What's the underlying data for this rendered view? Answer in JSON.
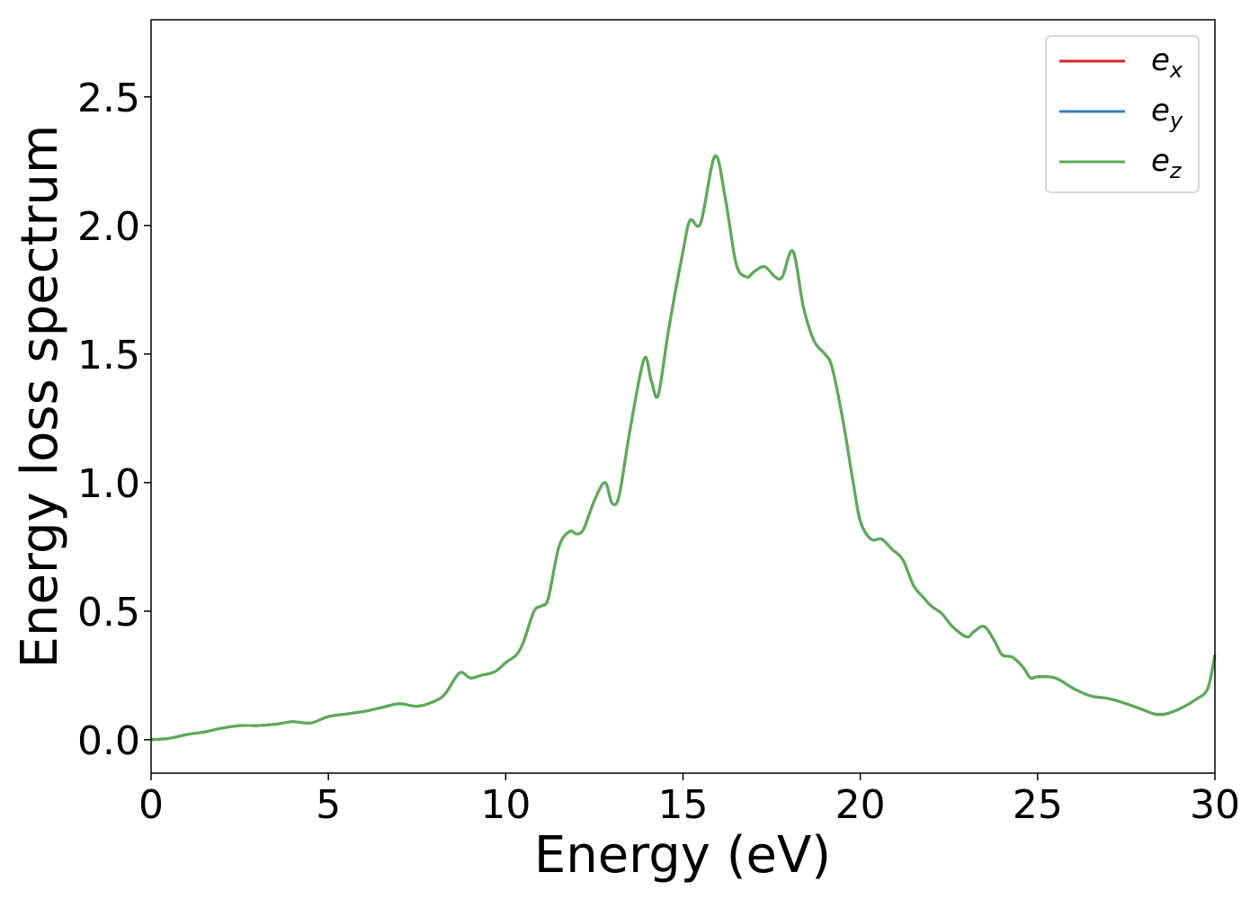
{
  "chart_data": {
    "type": "line",
    "title": "",
    "xlabel": "Energy (eV)",
    "ylabel": "Energy loss spectrum",
    "xlim": [
      0,
      30
    ],
    "ylim": [
      -0.13,
      2.8
    ],
    "xticks": [
      0,
      5,
      10,
      15,
      20,
      25,
      30
    ],
    "xtick_labels": [
      "0",
      "5",
      "10",
      "15",
      "20",
      "25",
      "30"
    ],
    "yticks": [
      0.0,
      0.5,
      1.0,
      1.5,
      2.0,
      2.5
    ],
    "ytick_labels": [
      "0.0",
      "0.5",
      "1.0",
      "1.5",
      "2.0",
      "2.5"
    ],
    "grid": false,
    "legend_position": "top-right",
    "x": [
      0,
      0.5,
      1,
      1.5,
      2,
      2.5,
      3,
      3.5,
      4,
      4.5,
      5,
      5.5,
      6,
      6.5,
      7,
      7.5,
      8,
      8.3,
      8.7,
      9,
      9.3,
      9.7,
      10,
      10.3,
      10.5,
      10.8,
      11,
      11.2,
      11.5,
      11.8,
      12,
      12.2,
      12.5,
      12.8,
      13,
      13.2,
      13.5,
      13.9,
      14.1,
      14.3,
      14.6,
      15,
      15.2,
      15.5,
      15.9,
      16.2,
      16.5,
      16.8,
      17,
      17.3,
      17.6,
      17.8,
      18.1,
      18.4,
      18.7,
      19,
      19.2,
      19.5,
      19.8,
      20,
      20.3,
      20.6,
      20.9,
      21.2,
      21.5,
      21.8,
      22,
      22.3,
      22.6,
      23,
      23.2,
      23.5,
      23.8,
      24,
      24.3,
      24.6,
      24.8,
      25,
      25.5,
      26,
      26.5,
      27,
      27.5,
      28,
      28.3,
      28.6,
      29,
      29.5,
      29.8,
      30
    ],
    "series": [
      {
        "name": "e_x",
        "label_base": "e",
        "label_sub": "x",
        "color": "#d62728",
        "values": [
          0,
          0.005,
          0.02,
          0.03,
          0.045,
          0.055,
          0.055,
          0.06,
          0.07,
          0.065,
          0.09,
          0.1,
          0.11,
          0.125,
          0.14,
          0.13,
          0.15,
          0.18,
          0.26,
          0.24,
          0.25,
          0.265,
          0.3,
          0.33,
          0.38,
          0.5,
          0.52,
          0.55,
          0.75,
          0.81,
          0.8,
          0.82,
          0.93,
          1.0,
          0.92,
          0.95,
          1.2,
          1.48,
          1.4,
          1.34,
          1.6,
          1.9,
          2.02,
          2.01,
          2.27,
          2.1,
          1.85,
          1.8,
          1.82,
          1.84,
          1.8,
          1.8,
          1.9,
          1.68,
          1.55,
          1.5,
          1.45,
          1.25,
          1.0,
          0.85,
          0.78,
          0.78,
          0.74,
          0.7,
          0.6,
          0.55,
          0.52,
          0.49,
          0.44,
          0.4,
          0.42,
          0.44,
          0.38,
          0.33,
          0.32,
          0.28,
          0.24,
          0.245,
          0.24,
          0.2,
          0.17,
          0.16,
          0.14,
          0.115,
          0.1,
          0.1,
          0.12,
          0.16,
          0.2,
          0.33
        ]
      },
      {
        "name": "e_y",
        "label_base": "e",
        "label_sub": "y",
        "color": "#377eb8",
        "values": [
          0,
          0.005,
          0.02,
          0.03,
          0.045,
          0.055,
          0.055,
          0.06,
          0.07,
          0.065,
          0.09,
          0.1,
          0.11,
          0.125,
          0.14,
          0.13,
          0.15,
          0.18,
          0.26,
          0.24,
          0.25,
          0.265,
          0.3,
          0.33,
          0.38,
          0.5,
          0.52,
          0.55,
          0.75,
          0.81,
          0.8,
          0.82,
          0.93,
          1.0,
          0.92,
          0.95,
          1.2,
          1.48,
          1.4,
          1.34,
          1.6,
          1.9,
          2.02,
          2.01,
          2.27,
          2.1,
          1.85,
          1.8,
          1.82,
          1.84,
          1.8,
          1.8,
          1.9,
          1.68,
          1.55,
          1.5,
          1.45,
          1.25,
          1.0,
          0.85,
          0.78,
          0.78,
          0.74,
          0.7,
          0.6,
          0.55,
          0.52,
          0.49,
          0.44,
          0.4,
          0.42,
          0.44,
          0.38,
          0.33,
          0.32,
          0.28,
          0.24,
          0.245,
          0.24,
          0.2,
          0.17,
          0.16,
          0.14,
          0.115,
          0.1,
          0.1,
          0.12,
          0.16,
          0.2,
          0.33
        ]
      },
      {
        "name": "e_z",
        "label_base": "e",
        "label_sub": "z",
        "color": "#5aad52",
        "values": [
          0,
          0.005,
          0.02,
          0.03,
          0.045,
          0.055,
          0.055,
          0.06,
          0.07,
          0.065,
          0.09,
          0.1,
          0.11,
          0.125,
          0.14,
          0.13,
          0.15,
          0.18,
          0.26,
          0.24,
          0.25,
          0.265,
          0.3,
          0.33,
          0.38,
          0.5,
          0.52,
          0.55,
          0.75,
          0.81,
          0.8,
          0.82,
          0.93,
          1.0,
          0.92,
          0.95,
          1.2,
          1.48,
          1.4,
          1.34,
          1.6,
          1.9,
          2.02,
          2.01,
          2.27,
          2.1,
          1.85,
          1.8,
          1.82,
          1.84,
          1.8,
          1.8,
          1.9,
          1.68,
          1.55,
          1.5,
          1.45,
          1.25,
          1.0,
          0.85,
          0.78,
          0.78,
          0.74,
          0.7,
          0.6,
          0.55,
          0.52,
          0.49,
          0.44,
          0.4,
          0.42,
          0.44,
          0.38,
          0.33,
          0.32,
          0.28,
          0.24,
          0.245,
          0.24,
          0.2,
          0.17,
          0.16,
          0.14,
          0.115,
          0.1,
          0.1,
          0.12,
          0.16,
          0.2,
          0.33
        ]
      }
    ]
  }
}
